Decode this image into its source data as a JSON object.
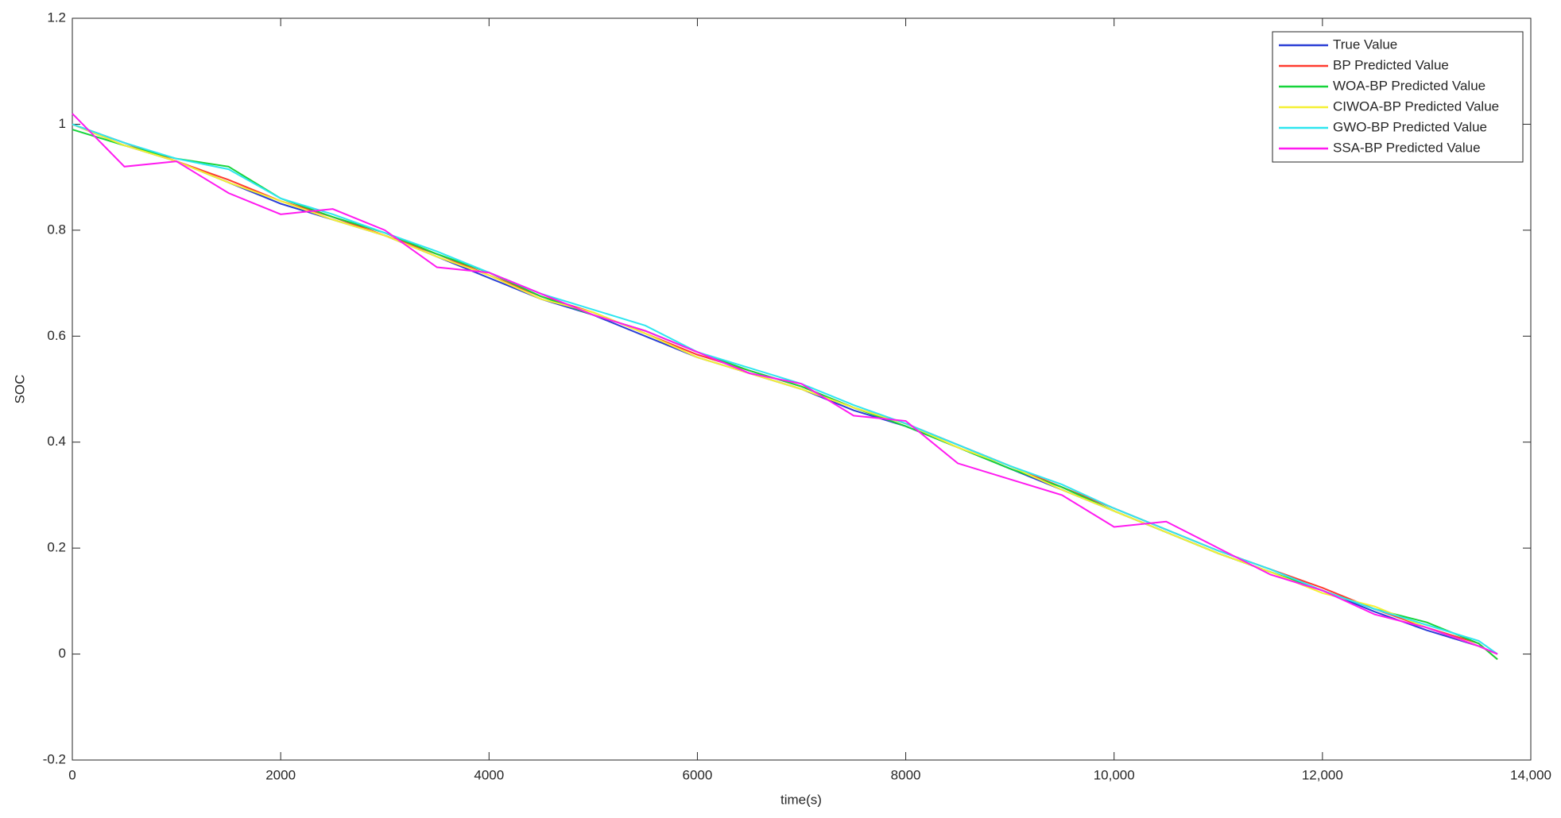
{
  "chart_data": {
    "type": "line",
    "xlabel": "time(s)",
    "ylabel": "SOC",
    "x": [
      0,
      500,
      1000,
      1500,
      2000,
      2500,
      3000,
      3500,
      4000,
      4500,
      5000,
      5500,
      6000,
      6500,
      7000,
      7500,
      8000,
      8500,
      9000,
      9500,
      10000,
      10500,
      11000,
      11500,
      12000,
      12500,
      13000,
      13500,
      13680
    ],
    "series": [
      {
        "name": "True Value",
        "color": "#2b3fd6",
        "values": [
          1.0,
          0.96,
          0.93,
          0.89,
          0.85,
          0.82,
          0.79,
          0.75,
          0.71,
          0.67,
          0.64,
          0.6,
          0.56,
          0.53,
          0.5,
          0.46,
          0.43,
          0.39,
          0.35,
          0.31,
          0.27,
          0.23,
          0.19,
          0.155,
          0.12,
          0.08,
          0.045,
          0.015,
          0.0
        ]
      },
      {
        "name": "BP Predicted Value",
        "color": "#ff3b2f",
        "values": [
          1.0,
          0.965,
          0.93,
          0.895,
          0.855,
          0.825,
          0.79,
          0.755,
          0.715,
          0.675,
          0.645,
          0.605,
          0.565,
          0.535,
          0.505,
          0.465,
          0.435,
          0.395,
          0.355,
          0.315,
          0.275,
          0.235,
          0.195,
          0.16,
          0.125,
          0.085,
          0.05,
          0.02,
          -0.01
        ]
      },
      {
        "name": "WOA-BP Predicted Value",
        "color": "#16d43a",
        "values": [
          0.99,
          0.96,
          0.935,
          0.92,
          0.86,
          0.825,
          0.795,
          0.755,
          0.72,
          0.675,
          0.64,
          0.61,
          0.57,
          0.535,
          0.505,
          0.465,
          0.43,
          0.39,
          0.35,
          0.315,
          0.27,
          0.23,
          0.19,
          0.155,
          0.12,
          0.085,
          0.06,
          0.02,
          -0.01
        ]
      },
      {
        "name": "CIWOA-BP Predicted Value",
        "color": "#f5f032",
        "values": [
          1.0,
          0.96,
          0.93,
          0.89,
          0.855,
          0.82,
          0.79,
          0.75,
          0.715,
          0.67,
          0.645,
          0.605,
          0.56,
          0.53,
          0.5,
          0.465,
          0.435,
          0.39,
          0.355,
          0.31,
          0.27,
          0.23,
          0.19,
          0.155,
          0.115,
          0.09,
          0.05,
          0.015,
          0.0
        ]
      },
      {
        "name": "GWO-BP Predicted Value",
        "color": "#2ee6f0",
        "values": [
          1.0,
          0.965,
          0.935,
          0.915,
          0.86,
          0.83,
          0.795,
          0.76,
          0.72,
          0.68,
          0.65,
          0.62,
          0.57,
          0.54,
          0.51,
          0.47,
          0.435,
          0.395,
          0.355,
          0.32,
          0.275,
          0.235,
          0.195,
          0.16,
          0.12,
          0.085,
          0.055,
          0.025,
          0.0
        ]
      },
      {
        "name": "SSA-BP Predicted Value",
        "color": "#ff19f0",
        "values": [
          1.02,
          0.92,
          0.93,
          0.87,
          0.83,
          0.84,
          0.8,
          0.73,
          0.72,
          0.68,
          0.64,
          0.61,
          0.57,
          0.53,
          0.51,
          0.45,
          0.44,
          0.36,
          0.33,
          0.3,
          0.24,
          0.25,
          0.2,
          0.15,
          0.12,
          0.075,
          0.05,
          0.015,
          0.0
        ]
      }
    ],
    "xlim": [
      0,
      14000
    ],
    "xticks": [
      0,
      2000,
      4000,
      6000,
      8000,
      {
        "value": 10000,
        "label": "10,000"
      },
      {
        "value": 12000,
        "label": "12,000"
      },
      {
        "value": 14000,
        "label": "14,000"
      }
    ],
    "ylim": [
      -0.2,
      1.2
    ],
    "yticks": [
      -0.2,
      0,
      0.2,
      0.4,
      0.6,
      0.8,
      1,
      1.2
    ],
    "grid": false,
    "legend": "upper right"
  }
}
